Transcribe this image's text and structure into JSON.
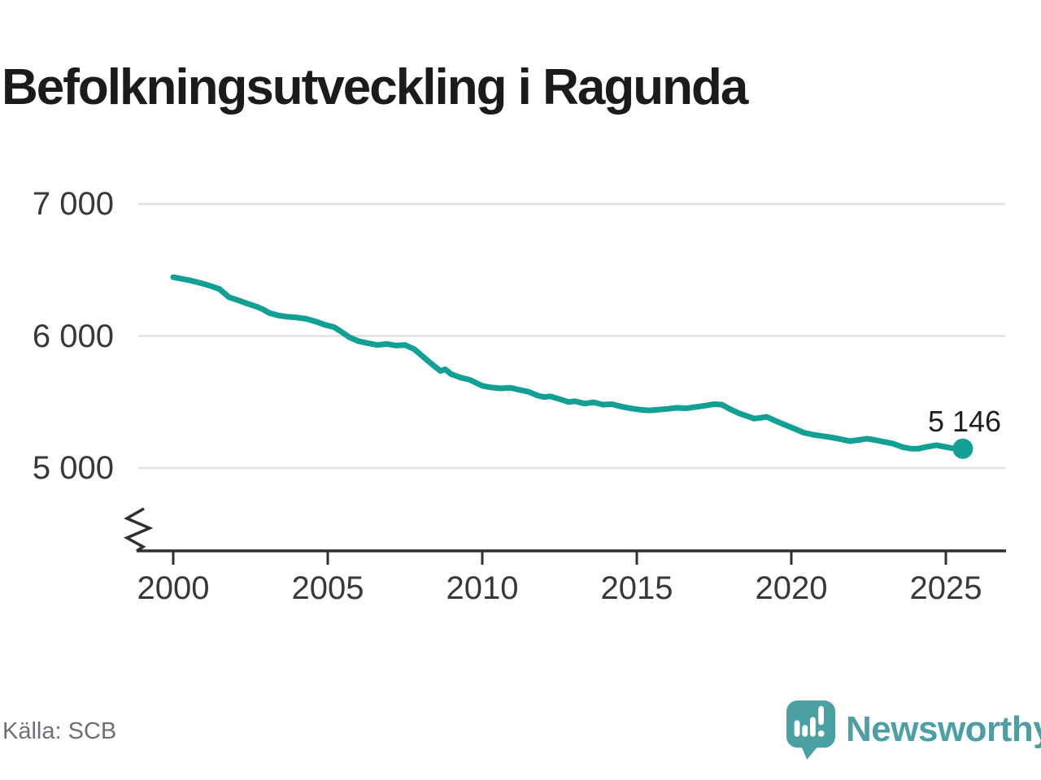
{
  "title": "Befolkningsutveckling i Ragunda",
  "source": "Källa: SCB",
  "brand": {
    "name": "Newsworthy",
    "logo_icon": "bar-chart-speech-bubble",
    "logo_color": "#4ba0a3",
    "text_color": "#4d9fa3"
  },
  "colors": {
    "line": "#12a094",
    "grid": "#e1e1e1",
    "axis": "#2f2f2f",
    "tick_text": "#383838",
    "title_text": "#1b1b1b",
    "muted_text": "#6f6f78"
  },
  "chart_data": {
    "type": "line",
    "title": "Befolkningsutveckling i Ragunda",
    "xlabel": "",
    "ylabel": "",
    "grid": "horizontal-only",
    "axis_break_on_y": true,
    "ylim": [
      4850,
      7150
    ],
    "xlim": [
      1998.8,
      2026.8
    ],
    "y_ticks": [
      {
        "value": 7000,
        "label": "7 000"
      },
      {
        "value": 6000,
        "label": "6 000"
      },
      {
        "value": 5000,
        "label": "5 000"
      }
    ],
    "x_ticks": [
      {
        "value": 2000,
        "label": "2000"
      },
      {
        "value": 2005,
        "label": "2005"
      },
      {
        "value": 2010,
        "label": "2010"
      },
      {
        "value": 2015,
        "label": "2015"
      },
      {
        "value": 2020,
        "label": "2020"
      },
      {
        "value": 2025,
        "label": "2025"
      }
    ],
    "end_label": "5 146",
    "end_value": 5146,
    "points": [
      [
        2000.0,
        6445
      ],
      [
        2000.3,
        6432
      ],
      [
        2000.6,
        6418
      ],
      [
        2000.9,
        6400
      ],
      [
        2001.2,
        6380
      ],
      [
        2001.5,
        6355
      ],
      [
        2001.8,
        6294
      ],
      [
        2002.1,
        6270
      ],
      [
        2002.4,
        6245
      ],
      [
        2002.7,
        6222
      ],
      [
        2002.9,
        6202
      ],
      [
        2003.1,
        6175
      ],
      [
        2003.4,
        6155
      ],
      [
        2003.7,
        6145
      ],
      [
        2004.0,
        6140
      ],
      [
        2004.3,
        6130
      ],
      [
        2004.6,
        6110
      ],
      [
        2004.9,
        6085
      ],
      [
        2005.2,
        6067
      ],
      [
        2005.45,
        6030
      ],
      [
        2005.7,
        5990
      ],
      [
        2006.0,
        5960
      ],
      [
        2006.3,
        5945
      ],
      [
        2006.6,
        5932
      ],
      [
        2006.9,
        5940
      ],
      [
        2007.2,
        5928
      ],
      [
        2007.5,
        5932
      ],
      [
        2007.8,
        5900
      ],
      [
        2008.0,
        5860
      ],
      [
        2008.3,
        5800
      ],
      [
        2008.5,
        5762
      ],
      [
        2008.65,
        5735
      ],
      [
        2008.8,
        5748
      ],
      [
        2009.0,
        5710
      ],
      [
        2009.3,
        5685
      ],
      [
        2009.6,
        5668
      ],
      [
        2010.0,
        5622
      ],
      [
        2010.3,
        5610
      ],
      [
        2010.6,
        5603
      ],
      [
        2010.9,
        5608
      ],
      [
        2011.2,
        5592
      ],
      [
        2011.5,
        5577
      ],
      [
        2011.8,
        5548
      ],
      [
        2012.0,
        5538
      ],
      [
        2012.2,
        5543
      ],
      [
        2012.5,
        5522
      ],
      [
        2012.8,
        5500
      ],
      [
        2013.0,
        5506
      ],
      [
        2013.3,
        5488
      ],
      [
        2013.6,
        5497
      ],
      [
        2013.9,
        5480
      ],
      [
        2014.2,
        5483
      ],
      [
        2014.5,
        5465
      ],
      [
        2014.8,
        5452
      ],
      [
        2015.1,
        5442
      ],
      [
        2015.4,
        5436
      ],
      [
        2015.7,
        5442
      ],
      [
        2016.0,
        5448
      ],
      [
        2016.3,
        5456
      ],
      [
        2016.6,
        5452
      ],
      [
        2016.9,
        5462
      ],
      [
        2017.2,
        5472
      ],
      [
        2017.5,
        5484
      ],
      [
        2017.75,
        5480
      ],
      [
        2018.0,
        5448
      ],
      [
        2018.3,
        5415
      ],
      [
        2018.6,
        5390
      ],
      [
        2018.8,
        5374
      ],
      [
        2019.0,
        5380
      ],
      [
        2019.2,
        5388
      ],
      [
        2019.5,
        5356
      ],
      [
        2019.8,
        5326
      ],
      [
        2020.1,
        5298
      ],
      [
        2020.4,
        5268
      ],
      [
        2020.7,
        5252
      ],
      [
        2021.0,
        5242
      ],
      [
        2021.3,
        5232
      ],
      [
        2021.6,
        5218
      ],
      [
        2021.9,
        5203
      ],
      [
        2022.2,
        5213
      ],
      [
        2022.45,
        5222
      ],
      [
        2022.7,
        5212
      ],
      [
        2023.0,
        5198
      ],
      [
        2023.3,
        5184
      ],
      [
        2023.6,
        5158
      ],
      [
        2023.85,
        5147
      ],
      [
        2024.1,
        5146
      ],
      [
        2024.4,
        5161
      ],
      [
        2024.7,
        5173
      ],
      [
        2025.0,
        5159
      ],
      [
        2025.2,
        5150
      ],
      [
        2025.55,
        5146
      ]
    ]
  }
}
